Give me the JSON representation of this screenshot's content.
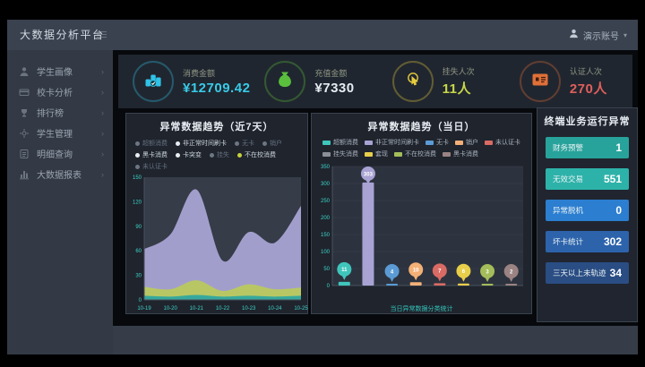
{
  "app": {
    "title": "大数据分析平台",
    "user_label": "演示账号",
    "caret": "▾"
  },
  "sidebar": {
    "items": [
      {
        "label": "学生画像",
        "icon": "student-icon"
      },
      {
        "label": "校卡分析",
        "icon": "card-icon"
      },
      {
        "label": "排行榜",
        "icon": "ranking-icon"
      },
      {
        "label": "学生管理",
        "icon": "manage-icon"
      },
      {
        "label": "明细查询",
        "icon": "query-icon"
      },
      {
        "label": "大数据报表",
        "icon": "report-icon"
      }
    ]
  },
  "kpis": [
    {
      "label": "消费金额",
      "value": "¥12709.42",
      "icon": "coins-icon",
      "icon_color": "#2fc3e8",
      "value_color": "#38cbe9"
    },
    {
      "label": "充值金额",
      "value": "¥7330",
      "icon": "moneybag-icon",
      "icon_color": "#5abf3d",
      "value_color": "#e6ecf2"
    },
    {
      "label": "挂失人次",
      "value": "11人",
      "icon": "hand-click-icon",
      "icon_color": "#e5cb3f",
      "value_color": "#c8d84a"
    },
    {
      "label": "认证人次",
      "value": "270人",
      "icon": "id-card-icon",
      "icon_color": "#e07038",
      "value_color": "#df5f5c"
    }
  ],
  "left_panel": {
    "title": "异常数据趋势（近7天）",
    "legend": [
      {
        "label": "超额消费",
        "muted": true,
        "dot": "#6d7683"
      },
      {
        "label": "非正常时间刷卡",
        "muted": false,
        "dot": "#e9eef2"
      },
      {
        "label": "无卡",
        "muted": true,
        "dot": "#6d7683"
      },
      {
        "label": "销户",
        "muted": true,
        "dot": "#6d7683"
      },
      {
        "label": "黑卡消费",
        "muted": false,
        "dot": "#e9eef2"
      },
      {
        "label": "卡突变",
        "muted": false,
        "dot": "#e9eef2"
      },
      {
        "label": "挂失",
        "muted": true,
        "dot": "#6d7683"
      },
      {
        "label": "不在校消费",
        "muted": false,
        "dot": "#c7d23c"
      },
      {
        "label": "未认证卡",
        "muted": true,
        "dot": "#6d7683"
      }
    ]
  },
  "right_panel": {
    "title": "异常数据趋势（当日）",
    "legend": [
      {
        "label": "超额消费",
        "color": "#3fc6bc"
      },
      {
        "label": "非正常时间刷卡",
        "color": "#a9a3d4"
      },
      {
        "label": "无卡",
        "color": "#5b9bd5"
      },
      {
        "label": "销户",
        "color": "#f2b077"
      },
      {
        "label": "未认证卡",
        "color": "#d96b64"
      },
      {
        "label": "挂失消费",
        "color": "#8a8f98"
      },
      {
        "label": "套现",
        "color": "#e8cf4a"
      },
      {
        "label": "不在校消费",
        "color": "#a4bd5a"
      },
      {
        "label": "黑卡消费",
        "color": "#9b8383"
      }
    ],
    "caption": "当日异常数据分类统计"
  },
  "stats_panel": {
    "title": "终端业务运行异常",
    "rows": [
      {
        "label": "财务预警",
        "value": "1",
        "color": "#28a39b"
      },
      {
        "label": "无效交易",
        "value": "551",
        "color": "#2db2a9"
      },
      {
        "label": "异常脱机",
        "value": "0",
        "color": "#2b7ed0"
      },
      {
        "label": "坏卡统计",
        "value": "302",
        "color": "#2d63ab"
      },
      {
        "label": "三天以上未轨迹",
        "value": "34",
        "color": "#2a4d83"
      }
    ]
  },
  "chart_data": [
    {
      "type": "area",
      "title": "异常数据趋势（近7天）",
      "x": [
        "10-19",
        "10-20",
        "10-21",
        "10-22",
        "10-23",
        "10-24",
        "10-25"
      ],
      "ylim": [
        0,
        150
      ],
      "yticks": [
        0,
        30,
        60,
        90,
        120,
        150
      ],
      "grid": false,
      "legend_position": "top",
      "axis_color": "#3fd4c9",
      "series": [
        {
          "name": "非正常时间刷卡",
          "color": "#a9a3d4",
          "values": [
            62,
            80,
            135,
            48,
            83,
            70,
            115
          ]
        },
        {
          "name": "不在校消费",
          "color": "#b9c95e",
          "values": [
            16,
            13,
            24,
            11,
            19,
            13,
            15
          ]
        },
        {
          "name": "超额消费",
          "color": "#2ea89f",
          "values": [
            5,
            4,
            6,
            4,
            5,
            4,
            5
          ]
        }
      ]
    },
    {
      "type": "bar",
      "title": "异常数据趋势（当日）",
      "categories": [
        "超额消费",
        "非正常时间刷卡",
        "无卡",
        "销户",
        "未认证卡",
        "套现",
        "不在校消费",
        "黑卡消费"
      ],
      "values": [
        11,
        303,
        4,
        10,
        7,
        6,
        3,
        2
      ],
      "colors": [
        "#3fc6bc",
        "#a9a3d4",
        "#5b9bd5",
        "#f2b077",
        "#d96b64",
        "#e8cf4a",
        "#a4bd5a",
        "#9b8383"
      ],
      "ylim": [
        0,
        350
      ],
      "yticks": [
        0,
        50,
        100,
        150,
        200,
        250,
        300,
        350
      ],
      "grid": true,
      "legend_position": "top",
      "axis_color": "#3fd4c9"
    }
  ]
}
